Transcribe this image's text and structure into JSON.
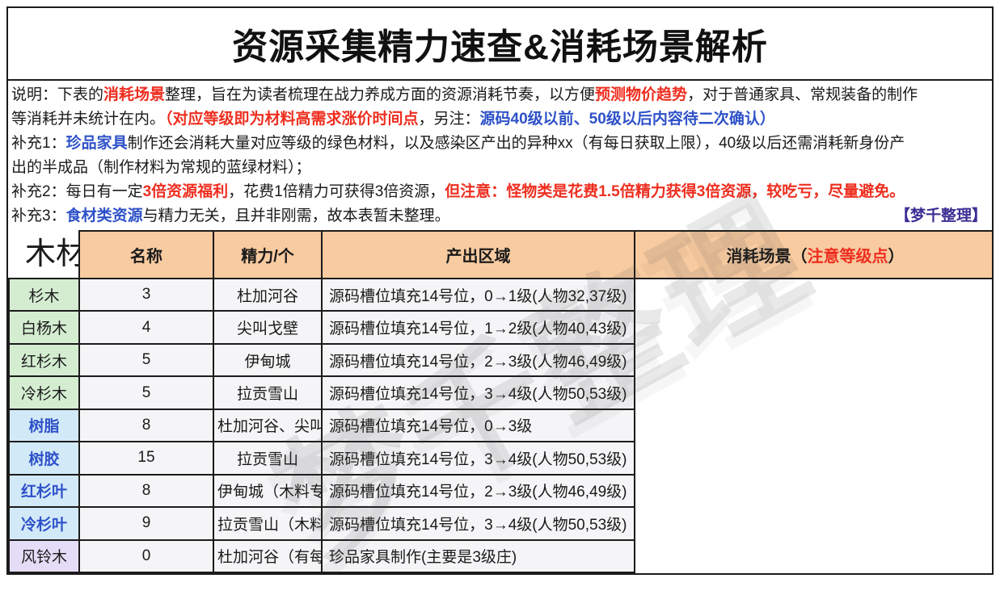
{
  "page": {
    "title": "资源采集精力速查&消耗场景解析"
  },
  "watermark": "梦千整理",
  "notes": {
    "line1": {
      "s0": "说明：下表的",
      "s1": "消耗场景",
      "s2": "整理，旨在为读者梳理在战力养成方面的资源消耗节奏，以方便",
      "s3": "预测物价趋势",
      "s4": "，对于普通家具、常规装备的制作"
    },
    "line2": {
      "s0": "等消耗并未统计在内。",
      "s1": "（对应等级即为材料高需求涨价时间点",
      "s2": "，另注：",
      "s3": "源码40级以前、50级以后内容待二次确认）"
    },
    "line3": {
      "s0": "补充1：",
      "s1": "珍品家具",
      "s2": "制作还会消耗大量对应等级的绿色材料，以及感染区产出的异种xx（有每日获取上限），40级以后还需消耗新身份产"
    },
    "line4": {
      "s0": "出的半成品（制作材料为常规的蓝绿材料）；"
    },
    "line5": {
      "s0": "补充2：每日有一定",
      "s1": "3倍资源福利",
      "s2": "，花费1倍精力可获得3倍资源，",
      "s3": "但注意：怪物类是花费1.5倍精力获得3倍资源，较吃亏，尽量避免。"
    },
    "line6": {
      "s0": "补充3：",
      "s1": "食材类资源",
      "s2": "与精力无关，且并非刚需，故本表暂未整理。",
      "credit": "【梦千整理】"
    }
  },
  "table": {
    "category": "木材类",
    "headers": {
      "name": "名称",
      "energy": "精力/个",
      "area": "产出区域",
      "usage_pre": "消耗场景（",
      "usage_red": "注意等级点",
      "usage_post": "）"
    },
    "rows": [
      {
        "name": "杉木",
        "energy": "3",
        "area": "杜加河谷",
        "usage": "源码槽位填充14号位，0→1级(人物32,37级)",
        "group": "green"
      },
      {
        "name": "白杨木",
        "energy": "4",
        "area": "尖叫戈壁",
        "usage": "源码槽位填充14号位，1→2级(人物40,43级)",
        "group": "green"
      },
      {
        "name": "红杉木",
        "energy": "5",
        "area": "伊甸城",
        "usage": "源码槽位填充14号位，2→3级(人物46,49级)",
        "group": "green"
      },
      {
        "name": "冷杉木",
        "energy": "5",
        "area": "拉贡雪山",
        "usage": "源码槽位填充14号位，3→4级(人物50,53级)",
        "group": "green"
      },
      {
        "name": "树脂",
        "energy": "8",
        "area": "杜加河谷、尖叫戈壁、伊甸城",
        "usage": "源码槽位填充14号位，0→3级",
        "group": "blue"
      },
      {
        "name": "树胶",
        "energy": "15",
        "area": "拉贡雪山",
        "usage": "源码槽位填充14号位，3→4级(人物50,53级)",
        "group": "blue"
      },
      {
        "name": "红杉叶",
        "energy": "8",
        "area": "伊甸城（木料专家）",
        "usage": "源码槽位填充14号位，2→3级(人物46,49级)",
        "group": "blue"
      },
      {
        "name": "冷杉叶",
        "energy": "9",
        "area": "拉贡雪山（木料专家）",
        "usage": "源码槽位填充14号位，3→4级(人物50,53级)",
        "group": "blue"
      },
      {
        "name": "风铃木",
        "energy": "0",
        "area": "杜加河谷（有每日获取上限）",
        "usage": "珍品家具制作(主要是3级庄)",
        "group": "purple"
      }
    ]
  },
  "colors": {
    "accent_red": "#ee2e1f",
    "accent_blue": "#2e51c8",
    "credit_purple": "#3b2e93",
    "header_bg": "#f8cba0",
    "group_green_bg": "#d4edd1",
    "group_blue_bg": "#d2e9f8",
    "group_purple_bg": "#e5ddf7",
    "cell_bg": "#f5f5f7",
    "border": "#1b1b1b"
  }
}
